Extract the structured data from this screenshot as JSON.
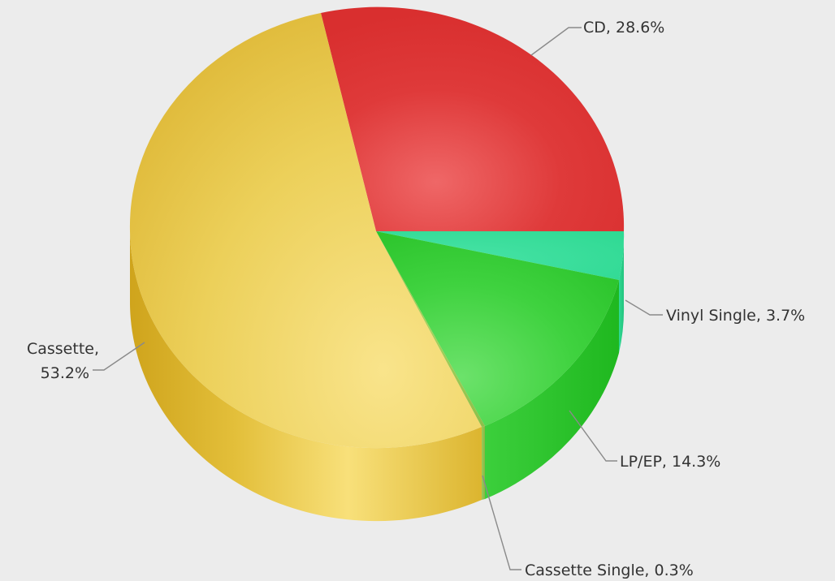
{
  "chart_data": {
    "type": "pie",
    "style": "3d",
    "slices": [
      {
        "label": "CD",
        "value": 28.6,
        "display": "CD, 28.6%",
        "color": "#dc3232"
      },
      {
        "label": "Vinyl Single",
        "value": 3.7,
        "display": "Vinyl Single, 3.7%",
        "color": "#33dd99"
      },
      {
        "label": "LP/EP",
        "value": 14.3,
        "display": "LP/EP, 14.3%",
        "color": "#33cc33"
      },
      {
        "label": "Cassette Single",
        "value": 0.3,
        "display": "Cassette Single, 0.3%",
        "color": "#99cc55"
      },
      {
        "label": "Cassette",
        "value": 53.2,
        "display_lines": [
          "Cassette,",
          "53.2%"
        ],
        "color": "#e8c23a"
      }
    ],
    "background": "#ececec"
  }
}
